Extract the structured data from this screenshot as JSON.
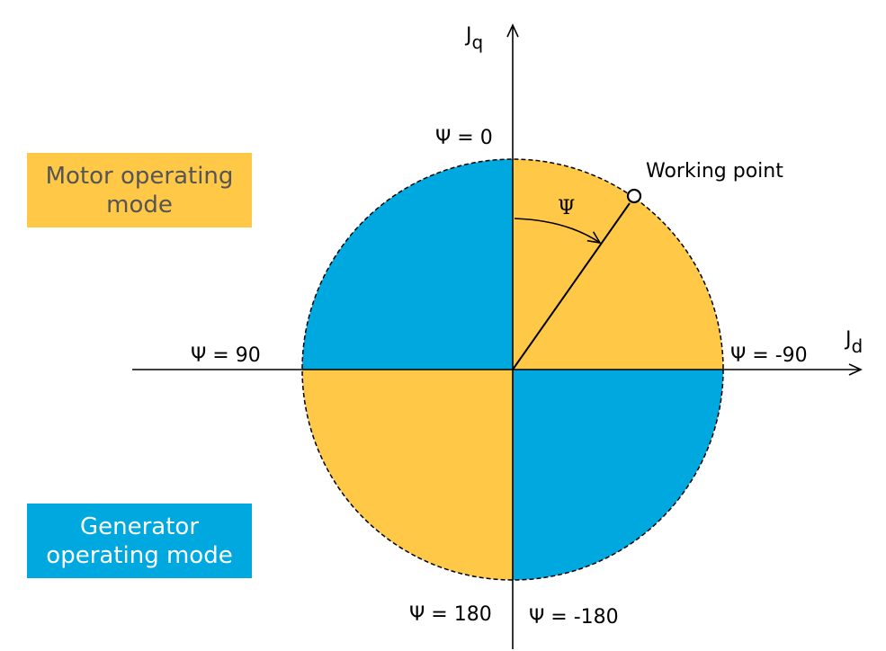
{
  "colors": {
    "motor": "#FFC846",
    "generator": "#00A8E0"
  },
  "axes": {
    "q_label": "J",
    "q_sub": "q",
    "d_label": "J",
    "d_sub": "d"
  },
  "angles": {
    "psi_symbol": "Ψ",
    "zero": "Ψ = 0",
    "ninety": "Ψ = 90",
    "minus_ninety": "Ψ = -90",
    "one_eighty": "Ψ = 180",
    "minus_one_eighty": "Ψ = -180"
  },
  "working_point": "Working point",
  "modes": {
    "motor": "Motor operating mode",
    "generator": "Generator operating mode"
  }
}
